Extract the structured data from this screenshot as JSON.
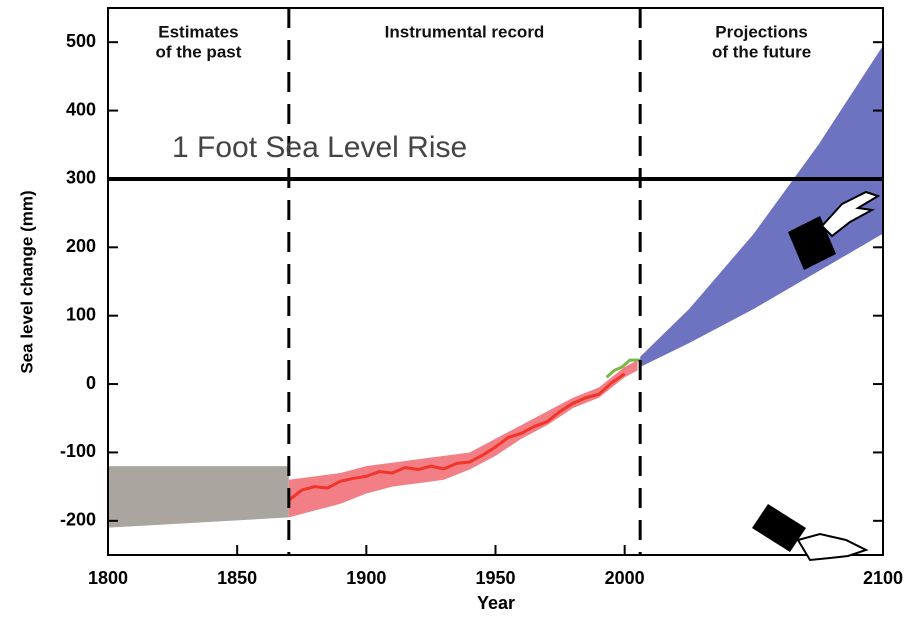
{
  "chart_data": {
    "type": "line",
    "x_label": "Year",
    "y_label": "Sea level change (mm)",
    "xlim": [
      1800,
      2100
    ],
    "ylim": [
      -250,
      550
    ],
    "xticks": [
      1800,
      1850,
      1900,
      1950,
      2000,
      2100
    ],
    "yticks": [
      -200,
      -100,
      0,
      100,
      200,
      300,
      400,
      500
    ],
    "dividers": [
      1870,
      2006
    ],
    "region_labels": [
      [
        "Estimates",
        "of the past"
      ],
      [
        "Instrumental record"
      ],
      [
        "Projections",
        "of the future"
      ]
    ],
    "reference_line": {
      "value": 300,
      "label": "1 Foot Sea Level Rise",
      "color": "#000000"
    },
    "bands": [
      {
        "color": "#aaa59f",
        "x": [
          1800,
          1870
        ],
        "lower": [
          -210,
          -195
        ],
        "upper": [
          -120,
          -120
        ]
      },
      {
        "color": "#f27f86",
        "x": [
          1870,
          1880,
          1890,
          1900,
          1910,
          1920,
          1930,
          1940,
          1950,
          1960,
          1970,
          1980,
          1990,
          2000,
          2005
        ],
        "lower": [
          -195,
          -185,
          -175,
          -160,
          -150,
          -145,
          -140,
          -125,
          -105,
          -80,
          -60,
          -35,
          -20,
          10,
          20
        ],
        "upper": [
          -140,
          -135,
          -130,
          -120,
          -115,
          -110,
          -105,
          -100,
          -80,
          -60,
          -40,
          -20,
          -5,
          25,
          35
        ]
      },
      {
        "color": "#6d73c0",
        "x": [
          2006,
          2025,
          2050,
          2075,
          2100
        ],
        "lower": [
          25,
          60,
          110,
          165,
          220
        ],
        "upper": [
          40,
          110,
          220,
          350,
          495
        ]
      }
    ],
    "series": [
      {
        "color": "#f2352a",
        "x": [
          1870,
          1875,
          1880,
          1885,
          1890,
          1895,
          1900,
          1905,
          1910,
          1915,
          1920,
          1925,
          1930,
          1935,
          1940,
          1945,
          1950,
          1955,
          1960,
          1965,
          1970,
          1975,
          1980,
          1985,
          1990,
          1995,
          2000
        ],
        "values": [
          -170,
          -155,
          -150,
          -152,
          -142,
          -138,
          -135,
          -128,
          -130,
          -122,
          -125,
          -120,
          -124,
          -116,
          -114,
          -104,
          -92,
          -78,
          -72,
          -62,
          -55,
          -40,
          -28,
          -20,
          -15,
          2,
          15
        ]
      },
      {
        "color": "#7ab648",
        "x": [
          1993,
          1996,
          1999,
          2002,
          2006
        ],
        "values": [
          10,
          20,
          25,
          35,
          35
        ]
      }
    ]
  }
}
